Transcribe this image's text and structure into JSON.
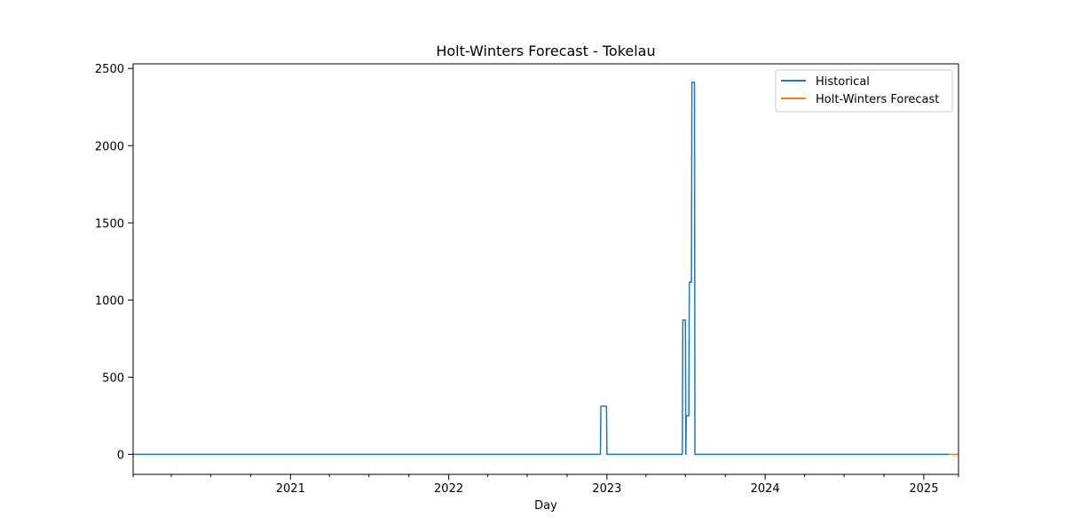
{
  "chart_data": {
    "type": "line",
    "title": "Holt-Winters Forecast - Tokelau",
    "xlabel": "Day",
    "ylabel": "",
    "xlim": [
      "2020-01-04",
      "2025-03-22"
    ],
    "ylim": [
      -130,
      2530
    ],
    "x_ticks": [
      {
        "date": "2021-01-01",
        "label": "2021"
      },
      {
        "date": "2022-01-01",
        "label": "2022"
      },
      {
        "date": "2023-01-01",
        "label": "2023"
      },
      {
        "date": "2024-01-01",
        "label": "2024"
      },
      {
        "date": "2025-01-01",
        "label": "2025"
      }
    ],
    "x_minor_ticks": [
      "2020-01-04",
      "2020-04-01",
      "2020-07-01",
      "2020-10-01",
      "2021-04-01",
      "2021-07-01",
      "2021-10-01",
      "2022-04-01",
      "2022-07-01",
      "2022-10-01",
      "2023-04-01",
      "2023-07-01",
      "2023-10-01",
      "2024-04-01",
      "2024-07-01",
      "2024-10-01",
      "2025-03-22"
    ],
    "y_ticks": [
      0,
      500,
      1000,
      1500,
      2000,
      2500
    ],
    "grid": false,
    "legend_position": "top-right",
    "series": [
      {
        "name": "Historical",
        "color": "#1f77b4",
        "points": [
          [
            "2020-01-04",
            0
          ],
          [
            "2022-12-17",
            0
          ],
          [
            "2022-12-18",
            312
          ],
          [
            "2022-12-31",
            312
          ],
          [
            "2023-01-01",
            0
          ],
          [
            "2023-06-24",
            0
          ],
          [
            "2023-06-25",
            870
          ],
          [
            "2023-07-01",
            870
          ],
          [
            "2023-07-02",
            0
          ],
          [
            "2023-07-03",
            250
          ],
          [
            "2023-07-09",
            250
          ],
          [
            "2023-07-10",
            1115
          ],
          [
            "2023-07-15",
            1115
          ],
          [
            "2023-07-16",
            2410
          ],
          [
            "2023-07-22",
            2410
          ],
          [
            "2023-07-23",
            0
          ],
          [
            "2025-03-01",
            0
          ]
        ]
      },
      {
        "name": "Holt-Winters Forecast",
        "color": "#ff7f0e",
        "points": [
          [
            "2025-03-01",
            0
          ],
          [
            "2025-03-22",
            0
          ]
        ]
      }
    ]
  }
}
